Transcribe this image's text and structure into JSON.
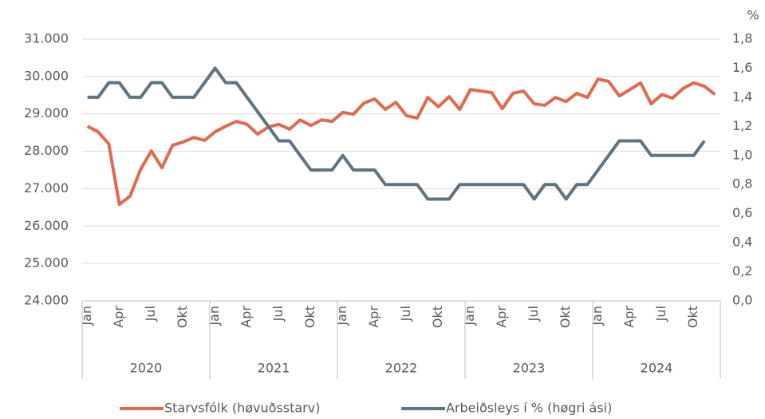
{
  "chart_data": {
    "type": "line",
    "y2_unit": "%",
    "categories": [
      "Jan",
      null,
      null,
      "Apr",
      null,
      null,
      "Jul",
      null,
      null,
      "Okt",
      null,
      null,
      "Jan",
      null,
      null,
      "Apr",
      null,
      null,
      "Jul",
      null,
      null,
      "Okt",
      null,
      null,
      "Jan",
      null,
      null,
      "Apr",
      null,
      null,
      "Jul",
      null,
      null,
      "Okt",
      null,
      null,
      "Jan",
      null,
      null,
      "Apr",
      null,
      null,
      "Jul",
      null,
      null,
      "Okt",
      null,
      null,
      "Jan",
      null,
      null,
      "Apr",
      null,
      null,
      "Jul",
      null,
      null,
      "Okt",
      null,
      null
    ],
    "groups": [
      "2020",
      "2021",
      "2022",
      "2023",
      "2024"
    ],
    "ylim": [
      24000,
      31000
    ],
    "yticks": [
      {
        "value": 24000,
        "label": "24.000"
      },
      {
        "value": 25000,
        "label": "25.000"
      },
      {
        "value": 26000,
        "label": "26.000"
      },
      {
        "value": 27000,
        "label": "27.000"
      },
      {
        "value": 28000,
        "label": "28.000"
      },
      {
        "value": 29000,
        "label": "29.000"
      },
      {
        "value": 30000,
        "label": "30.000"
      },
      {
        "value": 31000,
        "label": "31.000"
      }
    ],
    "y2lim": [
      0,
      1.8
    ],
    "y2ticks": [
      {
        "value": 0,
        "label": "0,0"
      },
      {
        "value": 0.2,
        "label": "0,2"
      },
      {
        "value": 0.4,
        "label": "0,4"
      },
      {
        "value": 0.6,
        "label": "0,6"
      },
      {
        "value": 0.8,
        "label": "0,8"
      },
      {
        "value": 1.0,
        "label": "1,0"
      },
      {
        "value": 1.2,
        "label": "1,2"
      },
      {
        "value": 1.4,
        "label": "1,4"
      },
      {
        "value": 1.6,
        "label": "1,6"
      },
      {
        "value": 1.8,
        "label": "1,8"
      }
    ],
    "grid": true,
    "legend": "bottom",
    "series": [
      {
        "name": "Starvsfólk (høvuðsstarv)",
        "color": "#e06a4e",
        "axis": "y",
        "values": [
          28670,
          28520,
          28200,
          26580,
          26800,
          27520,
          28010,
          27560,
          28160,
          28250,
          28370,
          28290,
          28520,
          28670,
          28800,
          28720,
          28460,
          28650,
          28720,
          28590,
          28840,
          28690,
          28840,
          28800,
          29040,
          28990,
          29290,
          29400,
          29120,
          29310,
          28950,
          28890,
          29440,
          29190,
          29460,
          29120,
          29650,
          29610,
          29570,
          29140,
          29550,
          29610,
          29270,
          29230,
          29440,
          29330,
          29550,
          29440,
          29930,
          29870,
          29480,
          29650,
          29830,
          29270,
          29520,
          29420,
          29680,
          29830,
          29740,
          29520
        ]
      },
      {
        "name": "Arbeiðsleys í % (høgri ási)",
        "color": "#5f7480",
        "axis": "y2",
        "values": [
          1.4,
          1.4,
          1.5,
          1.5,
          1.4,
          1.4,
          1.5,
          1.5,
          1.4,
          1.4,
          1.4,
          1.5,
          1.6,
          1.5,
          1.5,
          1.4,
          1.3,
          1.2,
          1.1,
          1.1,
          1.0,
          0.9,
          0.9,
          0.9,
          1.0,
          0.9,
          0.9,
          0.9,
          0.8,
          0.8,
          0.8,
          0.8,
          0.7,
          0.7,
          0.7,
          0.8,
          0.8,
          0.8,
          0.8,
          0.8,
          0.8,
          0.8,
          0.7,
          0.8,
          0.8,
          0.7,
          0.8,
          0.8,
          0.9,
          1.0,
          1.1,
          1.1,
          1.1,
          1.0,
          1.0,
          1.0,
          1.0,
          1.0,
          1.1,
          null
        ]
      }
    ]
  }
}
